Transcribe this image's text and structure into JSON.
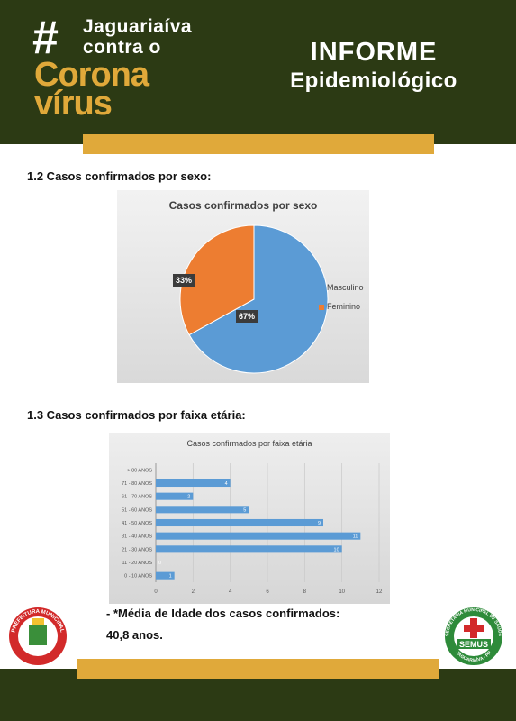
{
  "header": {
    "hash": "#",
    "brand_line1": "Jaguariaíva",
    "brand_line2": "contra o",
    "brand_corona": "Corona",
    "brand_virus": "vírus",
    "title": "INFORME",
    "subtitle": "Epidemiológico"
  },
  "section_sex": {
    "heading": "1.2 Casos confirmados por sexo:"
  },
  "section_age": {
    "heading": "1.3 Casos confirmados por faixa etária:"
  },
  "chart_data": [
    {
      "type": "pie",
      "title": "Casos confirmados por sexo",
      "categories": [
        "Masculino",
        "Feminino"
      ],
      "values": [
        67,
        33
      ],
      "labels": [
        "67%",
        "33%"
      ],
      "colors": [
        "#5b9bd5",
        "#ed7d31"
      ],
      "legend": "right"
    },
    {
      "type": "bar",
      "orientation": "horizontal",
      "title": "Casos confirmados por faixa etária",
      "categories": [
        "0 - 10 ANOS",
        "11 - 20 ANOS",
        "21 - 30 ANOS",
        "31 - 40 ANOS",
        "41 - 50 ANOS",
        "51 - 60 ANOS",
        "61 - 70 ANOS",
        "71 - 80 ANOS",
        "> 80 ANOS"
      ],
      "values": [
        1,
        0,
        10,
        11,
        9,
        5,
        2,
        4,
        0
      ],
      "value_labels": [
        "1",
        "0",
        "10",
        "11",
        "9",
        "5",
        "2",
        "4",
        ""
      ],
      "xlim": [
        0,
        12
      ],
      "xticks": [
        "0",
        "2",
        "4",
        "6",
        "8",
        "10",
        "12"
      ],
      "color": "#5b9bd5",
      "grid": true
    }
  ],
  "notes": {
    "line1": "- *Média de Idade dos casos confirmados:",
    "line2": "40,8 anos."
  },
  "seals": {
    "left": {
      "top_text": "PREFEITURA MUNICIPAL",
      "bottom_text": "JAGUARIAÍVA - PR"
    },
    "right": {
      "ring_text": "SECRETARIA MUNICIPAL DE SAÚDE",
      "bottom_text": "JAGUARIAÍVA - PR",
      "badge": "SEMUS"
    }
  },
  "colors": {
    "dark_green": "#2c3a14",
    "gold": "#e0a93a",
    "chart_blue": "#5b9bd5",
    "chart_orange": "#ed7d31"
  }
}
